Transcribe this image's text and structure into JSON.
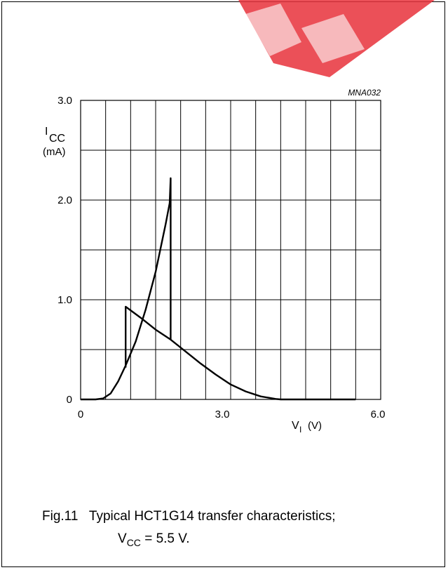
{
  "chart_data": {
    "type": "line",
    "code": "MNA032",
    "ylabel": {
      "symbol": "I",
      "subscript": "CC",
      "unit": "(mA)"
    },
    "xlabel": {
      "symbol": "V",
      "subscript": "I",
      "unit": "(V)"
    },
    "x_ticks": [
      "0",
      "3.0",
      "6.0"
    ],
    "y_ticks": [
      "0",
      "1.0",
      "2.0",
      "3.0"
    ],
    "xlim": [
      0,
      6.0
    ],
    "ylim": [
      0,
      3.0
    ],
    "grid": true,
    "series": [
      {
        "points": [
          [
            0,
            0
          ],
          [
            0.3,
            0.0
          ],
          [
            0.45,
            0.01
          ],
          [
            0.6,
            0.06
          ],
          [
            0.75,
            0.18
          ],
          [
            0.9,
            0.34
          ],
          [
            1.1,
            0.58
          ],
          [
            1.3,
            0.9
          ],
          [
            1.5,
            1.28
          ],
          [
            1.7,
            1.76
          ],
          [
            1.78,
            1.97
          ],
          [
            1.8,
            2.22
          ],
          [
            1.8,
            0.6
          ]
        ]
      },
      {
        "points": [
          [
            0.9,
            0.32
          ],
          [
            0.9,
            0.93
          ],
          [
            1.2,
            0.82
          ],
          [
            1.5,
            0.7
          ],
          [
            1.8,
            0.6
          ],
          [
            2.1,
            0.48
          ],
          [
            2.4,
            0.36
          ],
          [
            2.7,
            0.25
          ],
          [
            3.0,
            0.15
          ],
          [
            3.3,
            0.08
          ],
          [
            3.6,
            0.03
          ],
          [
            3.9,
            0.005
          ],
          [
            4.0,
            0
          ],
          [
            5.5,
            0
          ]
        ]
      }
    ]
  },
  "caption": {
    "fig": "Fig.11",
    "text": "Typical HCT1G14 transfer characteristics;",
    "line2_symbol": "V",
    "line2_subscript": "CC",
    "line2_rest": " = 5.5 V."
  },
  "watermark_color": "#e8323c"
}
